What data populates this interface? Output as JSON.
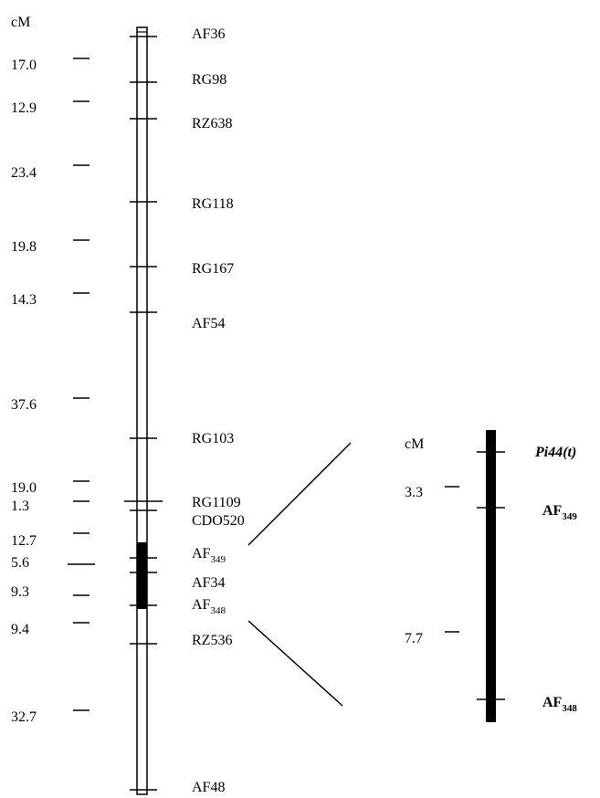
{
  "left_chromosome": {
    "unit_label": "cM",
    "distances": [
      "17.0",
      "12.9",
      "23.4",
      "19.8",
      "14.3",
      "37.6",
      "19.0",
      "1.3",
      "12.7",
      "5.6",
      "9.3",
      "9.4",
      "32.7"
    ],
    "markers": [
      {
        "main": "AF36",
        "sub": ""
      },
      {
        "main": "RG98",
        "sub": ""
      },
      {
        "main": "RZ638",
        "sub": ""
      },
      {
        "main": "RG118",
        "sub": ""
      },
      {
        "main": "RG167",
        "sub": ""
      },
      {
        "main": "AF54",
        "sub": ""
      },
      {
        "main": "RG103",
        "sub": ""
      },
      {
        "main": "RG1109",
        "sub": ""
      },
      {
        "main": "CDO520",
        "sub": ""
      },
      {
        "main": "AF",
        "sub": "349"
      },
      {
        "main": "AF34",
        "sub": ""
      },
      {
        "main": "AF",
        "sub": "348"
      },
      {
        "main": "RZ536",
        "sub": ""
      },
      {
        "main": "AF48",
        "sub": ""
      }
    ]
  },
  "right_region": {
    "unit_label": "cM",
    "distances": [
      "3.3",
      "7.7"
    ],
    "markers": [
      {
        "main": "Pi44(t)",
        "sub": "",
        "style": "italic"
      },
      {
        "main": "AF",
        "sub": "349",
        "style": "bold"
      },
      {
        "main": "AF",
        "sub": "348",
        "style": "bold"
      }
    ]
  },
  "colors": {
    "ink": "#000000",
    "background": "#ffffff"
  }
}
